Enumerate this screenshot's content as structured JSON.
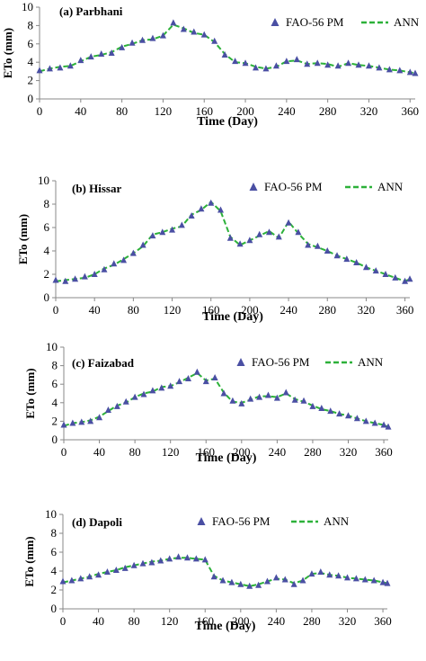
{
  "figure": {
    "panels": [
      {
        "title": "(a) Parbhani",
        "xlabel": "Time (Day)",
        "ylabel": "ETo (mm)",
        "legend_fao": "FAO-56 PM",
        "legend_ann": "ANN"
      },
      {
        "title": "(b) Hissar",
        "xlabel": "Time (Day)",
        "ylabel": "ETo (mm)",
        "legend_fao": "FAO-56 PM",
        "legend_ann": "ANN"
      },
      {
        "title": "(c) Faizabad",
        "xlabel": "Time (Day)",
        "ylabel": "ETo (mm)",
        "legend_fao": "FAO-56 PM",
        "legend_ann": "ANN"
      },
      {
        "title": "(d) Dapoli",
        "xlabel": "Time (Day)",
        "ylabel": "ETo (mm)",
        "legend_fao": "FAO-56 PM",
        "legend_ann": "ANN"
      }
    ]
  },
  "colors": {
    "fao_marker": "#4a4fa3",
    "ann_line": "#2db13a",
    "axis": "#888888"
  },
  "chart_data": [
    {
      "type": "scatter",
      "title": "(a) Parbhani",
      "xlabel": "Time (Day)",
      "ylabel": "ETo (mm)",
      "xlim": [
        0,
        365
      ],
      "ylim": [
        0,
        10
      ],
      "xticks": [
        0,
        40,
        80,
        120,
        160,
        200,
        240,
        280,
        320,
        360
      ],
      "yticks": [
        0,
        2,
        4,
        6,
        8,
        10
      ],
      "legend_position": "top-right",
      "series": [
        {
          "name": "FAO-56 PM",
          "style": "triangle-marker",
          "x": [
            0,
            10,
            20,
            30,
            40,
            50,
            60,
            70,
            80,
            90,
            100,
            110,
            120,
            130,
            140,
            150,
            160,
            170,
            180,
            190,
            200,
            210,
            220,
            230,
            240,
            250,
            260,
            270,
            280,
            290,
            300,
            310,
            320,
            330,
            340,
            350,
            360,
            365
          ],
          "y": [
            3.1,
            3.3,
            3.4,
            3.6,
            4.2,
            4.6,
            4.9,
            5.0,
            5.6,
            6.1,
            6.4,
            6.6,
            6.9,
            8.3,
            7.6,
            7.3,
            7.0,
            6.3,
            4.8,
            4.1,
            3.9,
            3.4,
            3.3,
            3.6,
            4.1,
            4.3,
            3.8,
            3.9,
            3.7,
            3.6,
            3.9,
            3.7,
            3.6,
            3.4,
            3.2,
            3.1,
            2.9,
            2.8
          ]
        },
        {
          "name": "ANN",
          "style": "dashed-line",
          "x": [
            0,
            10,
            20,
            30,
            40,
            50,
            60,
            70,
            80,
            90,
            100,
            110,
            120,
            130,
            140,
            150,
            160,
            170,
            180,
            190,
            200,
            210,
            220,
            230,
            240,
            250,
            260,
            270,
            280,
            290,
            300,
            310,
            320,
            330,
            340,
            350,
            360,
            365
          ],
          "y": [
            3.0,
            3.3,
            3.5,
            3.6,
            4.1,
            4.6,
            4.8,
            5.1,
            5.7,
            6.0,
            6.4,
            6.5,
            6.9,
            8.1,
            7.7,
            7.2,
            7.0,
            6.2,
            4.9,
            4.0,
            3.9,
            3.5,
            3.3,
            3.5,
            4.1,
            4.2,
            3.8,
            3.9,
            3.8,
            3.5,
            3.9,
            3.7,
            3.6,
            3.4,
            3.2,
            3.1,
            2.9,
            2.8
          ]
        }
      ]
    },
    {
      "type": "scatter",
      "title": "(b) Hissar",
      "xlabel": "Time (Day)",
      "ylabel": "ETo (mm)",
      "xlim": [
        0,
        365
      ],
      "ylim": [
        0,
        10
      ],
      "xticks": [
        0,
        40,
        80,
        120,
        160,
        200,
        240,
        280,
        320,
        360
      ],
      "yticks": [
        0,
        2,
        4,
        6,
        8,
        10
      ],
      "legend_position": "top-right",
      "series": [
        {
          "name": "FAO-56 PM",
          "style": "triangle-marker",
          "x": [
            0,
            10,
            20,
            30,
            40,
            50,
            60,
            70,
            80,
            90,
            100,
            110,
            120,
            130,
            140,
            150,
            160,
            170,
            180,
            190,
            200,
            210,
            220,
            230,
            240,
            250,
            260,
            270,
            280,
            290,
            300,
            310,
            320,
            330,
            340,
            350,
            360,
            365
          ],
          "y": [
            1.5,
            1.4,
            1.6,
            1.8,
            2.0,
            2.4,
            2.9,
            3.2,
            3.8,
            4.5,
            5.3,
            5.6,
            5.8,
            6.2,
            7.0,
            7.6,
            8.1,
            7.5,
            5.1,
            4.6,
            4.9,
            5.4,
            5.6,
            5.2,
            6.4,
            5.6,
            4.5,
            4.4,
            4.0,
            3.6,
            3.3,
            3.0,
            2.6,
            2.3,
            2.0,
            1.7,
            1.4,
            1.6
          ]
        },
        {
          "name": "ANN",
          "style": "dashed-line",
          "x": [
            0,
            10,
            20,
            30,
            40,
            50,
            60,
            70,
            80,
            90,
            100,
            110,
            120,
            130,
            140,
            150,
            160,
            170,
            180,
            190,
            200,
            210,
            220,
            230,
            240,
            250,
            260,
            270,
            280,
            290,
            300,
            310,
            320,
            330,
            340,
            350,
            360,
            365
          ],
          "y": [
            1.4,
            1.5,
            1.6,
            1.7,
            2.0,
            2.5,
            2.8,
            3.3,
            3.8,
            4.4,
            5.4,
            5.6,
            5.9,
            6.1,
            7.1,
            7.5,
            8.2,
            7.4,
            5.2,
            4.5,
            4.9,
            5.3,
            5.7,
            5.1,
            6.5,
            5.5,
            4.6,
            4.3,
            4.0,
            3.6,
            3.3,
            3.0,
            2.6,
            2.3,
            2.0,
            1.7,
            1.4,
            1.6
          ]
        }
      ]
    },
    {
      "type": "scatter",
      "title": "(c) Faizabad",
      "xlabel": "Time (Day)",
      "ylabel": "ETo (mm)",
      "xlim": [
        0,
        365
      ],
      "ylim": [
        0,
        10
      ],
      "xticks": [
        0,
        40,
        80,
        120,
        160,
        200,
        240,
        280,
        320,
        360
      ],
      "yticks": [
        0,
        2,
        4,
        6,
        8,
        10
      ],
      "legend_position": "top-right",
      "series": [
        {
          "name": "FAO-56 PM",
          "style": "triangle-marker",
          "x": [
            0,
            10,
            20,
            30,
            40,
            50,
            60,
            70,
            80,
            90,
            100,
            110,
            120,
            130,
            140,
            150,
            160,
            170,
            180,
            190,
            200,
            210,
            220,
            230,
            240,
            250,
            260,
            270,
            280,
            290,
            300,
            310,
            320,
            330,
            340,
            350,
            360,
            365
          ],
          "y": [
            1.6,
            1.8,
            1.9,
            2.0,
            2.4,
            3.2,
            3.6,
            4.1,
            4.6,
            4.9,
            5.3,
            5.6,
            5.8,
            6.3,
            6.6,
            7.3,
            6.3,
            6.7,
            5.0,
            4.2,
            3.9,
            4.4,
            4.6,
            4.8,
            4.5,
            5.1,
            4.3,
            4.2,
            3.6,
            3.4,
            3.1,
            2.8,
            2.6,
            2.3,
            2.0,
            1.8,
            1.6,
            1.4
          ]
        },
        {
          "name": "ANN",
          "style": "dashed-line",
          "x": [
            0,
            10,
            20,
            30,
            40,
            50,
            60,
            70,
            80,
            90,
            100,
            110,
            120,
            130,
            140,
            150,
            160,
            170,
            180,
            190,
            200,
            210,
            220,
            230,
            240,
            250,
            260,
            270,
            280,
            290,
            300,
            310,
            320,
            330,
            340,
            350,
            360,
            365
          ],
          "y": [
            1.5,
            1.8,
            1.9,
            2.1,
            2.5,
            3.1,
            3.7,
            4.0,
            4.6,
            5.0,
            5.2,
            5.7,
            5.8,
            6.2,
            6.7,
            7.2,
            6.4,
            6.6,
            5.1,
            4.1,
            4.0,
            4.3,
            4.7,
            4.7,
            4.6,
            5.0,
            4.4,
            4.1,
            3.7,
            3.3,
            3.1,
            2.8,
            2.6,
            2.3,
            2.0,
            1.8,
            1.6,
            1.4
          ]
        }
      ]
    },
    {
      "type": "scatter",
      "title": "(d) Dapoli",
      "xlabel": "Time (Day)",
      "ylabel": "ETo (mm)",
      "xlim": [
        0,
        365
      ],
      "ylim": [
        0,
        10
      ],
      "xticks": [
        0,
        40,
        80,
        120,
        160,
        200,
        240,
        280,
        320,
        360
      ],
      "yticks": [
        0,
        2,
        4,
        6,
        8,
        10
      ],
      "legend_position": "top-right",
      "series": [
        {
          "name": "FAO-56 PM",
          "style": "triangle-marker",
          "x": [
            0,
            10,
            20,
            30,
            40,
            50,
            60,
            70,
            80,
            90,
            100,
            110,
            120,
            130,
            140,
            150,
            160,
            170,
            180,
            190,
            200,
            210,
            220,
            230,
            240,
            250,
            260,
            270,
            280,
            290,
            300,
            310,
            320,
            330,
            340,
            350,
            360,
            365
          ],
          "y": [
            2.9,
            3.0,
            3.2,
            3.4,
            3.6,
            3.9,
            4.1,
            4.3,
            4.6,
            4.8,
            4.9,
            5.1,
            5.3,
            5.5,
            5.4,
            5.3,
            5.2,
            3.4,
            3.0,
            2.8,
            2.6,
            2.4,
            2.5,
            2.9,
            3.3,
            3.1,
            2.6,
            3.0,
            3.7,
            3.9,
            3.6,
            3.5,
            3.3,
            3.2,
            3.1,
            3.0,
            2.8,
            2.7
          ]
        },
        {
          "name": "ANN",
          "style": "dashed-line",
          "x": [
            0,
            10,
            20,
            30,
            40,
            50,
            60,
            70,
            80,
            90,
            100,
            110,
            120,
            130,
            140,
            150,
            160,
            170,
            180,
            190,
            200,
            210,
            220,
            230,
            240,
            250,
            260,
            270,
            280,
            290,
            300,
            310,
            320,
            330,
            340,
            350,
            360,
            365
          ],
          "y": [
            2.8,
            3.0,
            3.2,
            3.4,
            3.7,
            3.9,
            4.1,
            4.4,
            4.6,
            4.8,
            5.0,
            5.1,
            5.3,
            5.4,
            5.4,
            5.3,
            5.2,
            3.5,
            3.0,
            2.8,
            2.6,
            2.4,
            2.6,
            2.9,
            3.2,
            3.1,
            2.7,
            3.0,
            3.7,
            3.8,
            3.6,
            3.5,
            3.3,
            3.2,
            3.1,
            3.0,
            2.8,
            2.7
          ]
        }
      ]
    }
  ]
}
